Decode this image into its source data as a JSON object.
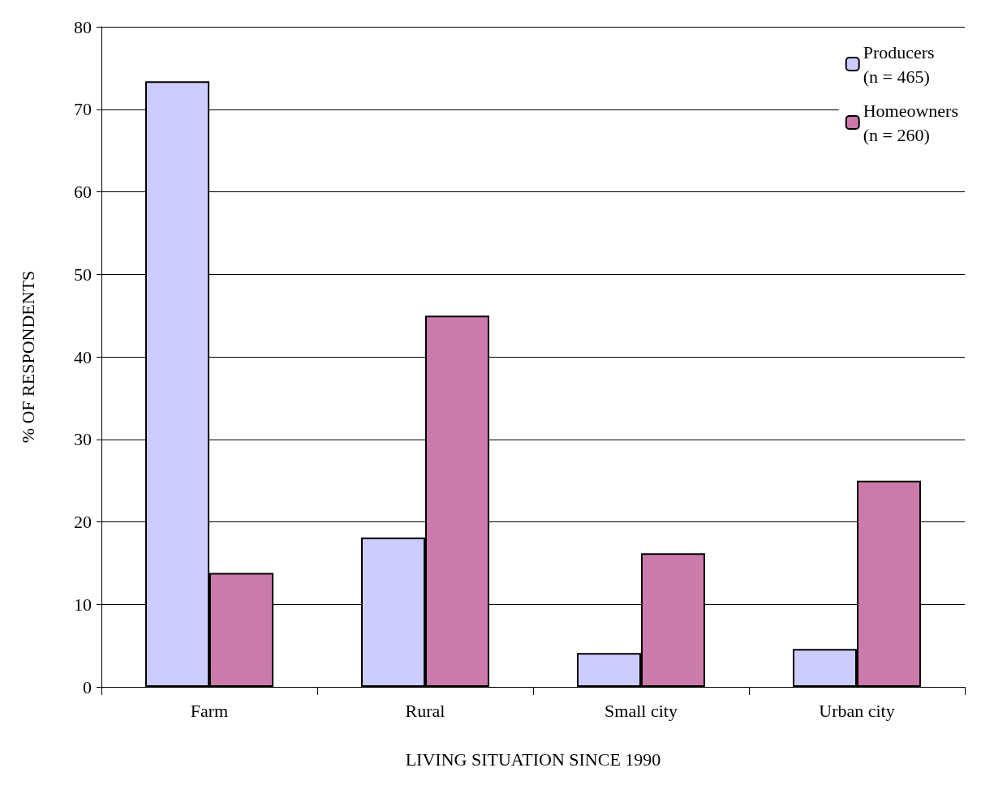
{
  "chart_data": {
    "type": "bar",
    "xlabel": "LIVING SITUATION SINCE 1990",
    "ylabel": "% OF RESPONDENTS",
    "categories": [
      "Farm",
      "Rural",
      "Small city",
      "Urban city"
    ],
    "series": [
      {
        "name": "Producers\n(n = 465)",
        "color": "#ccccff",
        "values": [
          73.4,
          18.1,
          4.1,
          4.6
        ]
      },
      {
        "name": "Homeowners\n(n = 260)",
        "color": "#cc7aaa",
        "values": [
          13.8,
          45,
          16.2,
          25.0
        ]
      }
    ],
    "ylim": [
      0,
      80
    ],
    "yticks": [
      0,
      10,
      20,
      30,
      40,
      50,
      60,
      70,
      80
    ],
    "grid": "y",
    "legend": "top right"
  }
}
